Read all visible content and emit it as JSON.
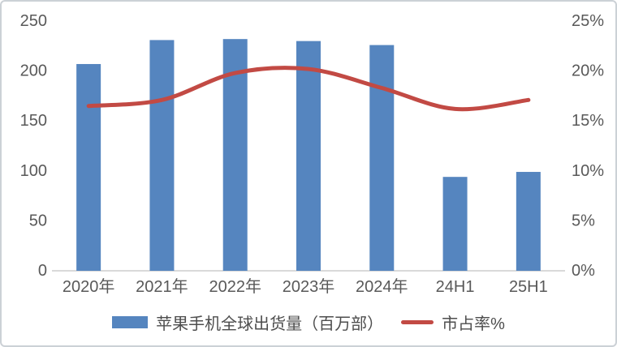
{
  "chart_data": {
    "type": "bar+line",
    "categories": [
      "2020年",
      "2021年",
      "2022年",
      "2023年",
      "2024年",
      "24H1",
      "25H1"
    ],
    "series": [
      {
        "name": "苹果手机全球出货量（百万部）",
        "type": "bar",
        "axis": "left",
        "values": [
          207,
          231,
          232,
          230,
          226,
          94,
          99
        ],
        "color": "#5585BF"
      },
      {
        "name": "市占率%",
        "type": "line",
        "axis": "right",
        "values": [
          16.5,
          17.1,
          19.8,
          20.2,
          18.3,
          16.2,
          17.1
        ],
        "color": "#C24A44"
      }
    ],
    "left_axis": {
      "min": 0,
      "max": 250,
      "ticks": [
        "0",
        "50",
        "100",
        "150",
        "200",
        "250"
      ]
    },
    "right_axis": {
      "min": 0,
      "max": 25,
      "ticks": [
        "0%",
        "5%",
        "10%",
        "15%",
        "20%",
        "25%"
      ]
    },
    "grid": false,
    "legend_position": "bottom"
  },
  "legend": {
    "bar_label": "苹果手机全球出货量（百万部）",
    "line_label": "市占率%"
  },
  "colors": {
    "bar": "#5585BF",
    "line": "#C24A44",
    "axis_text": "#595959",
    "axis_line": "#D9D9D9",
    "legend_text": "#4D4D4D",
    "frame_border": "#CCD1D6",
    "background": "#FFFFFF"
  }
}
